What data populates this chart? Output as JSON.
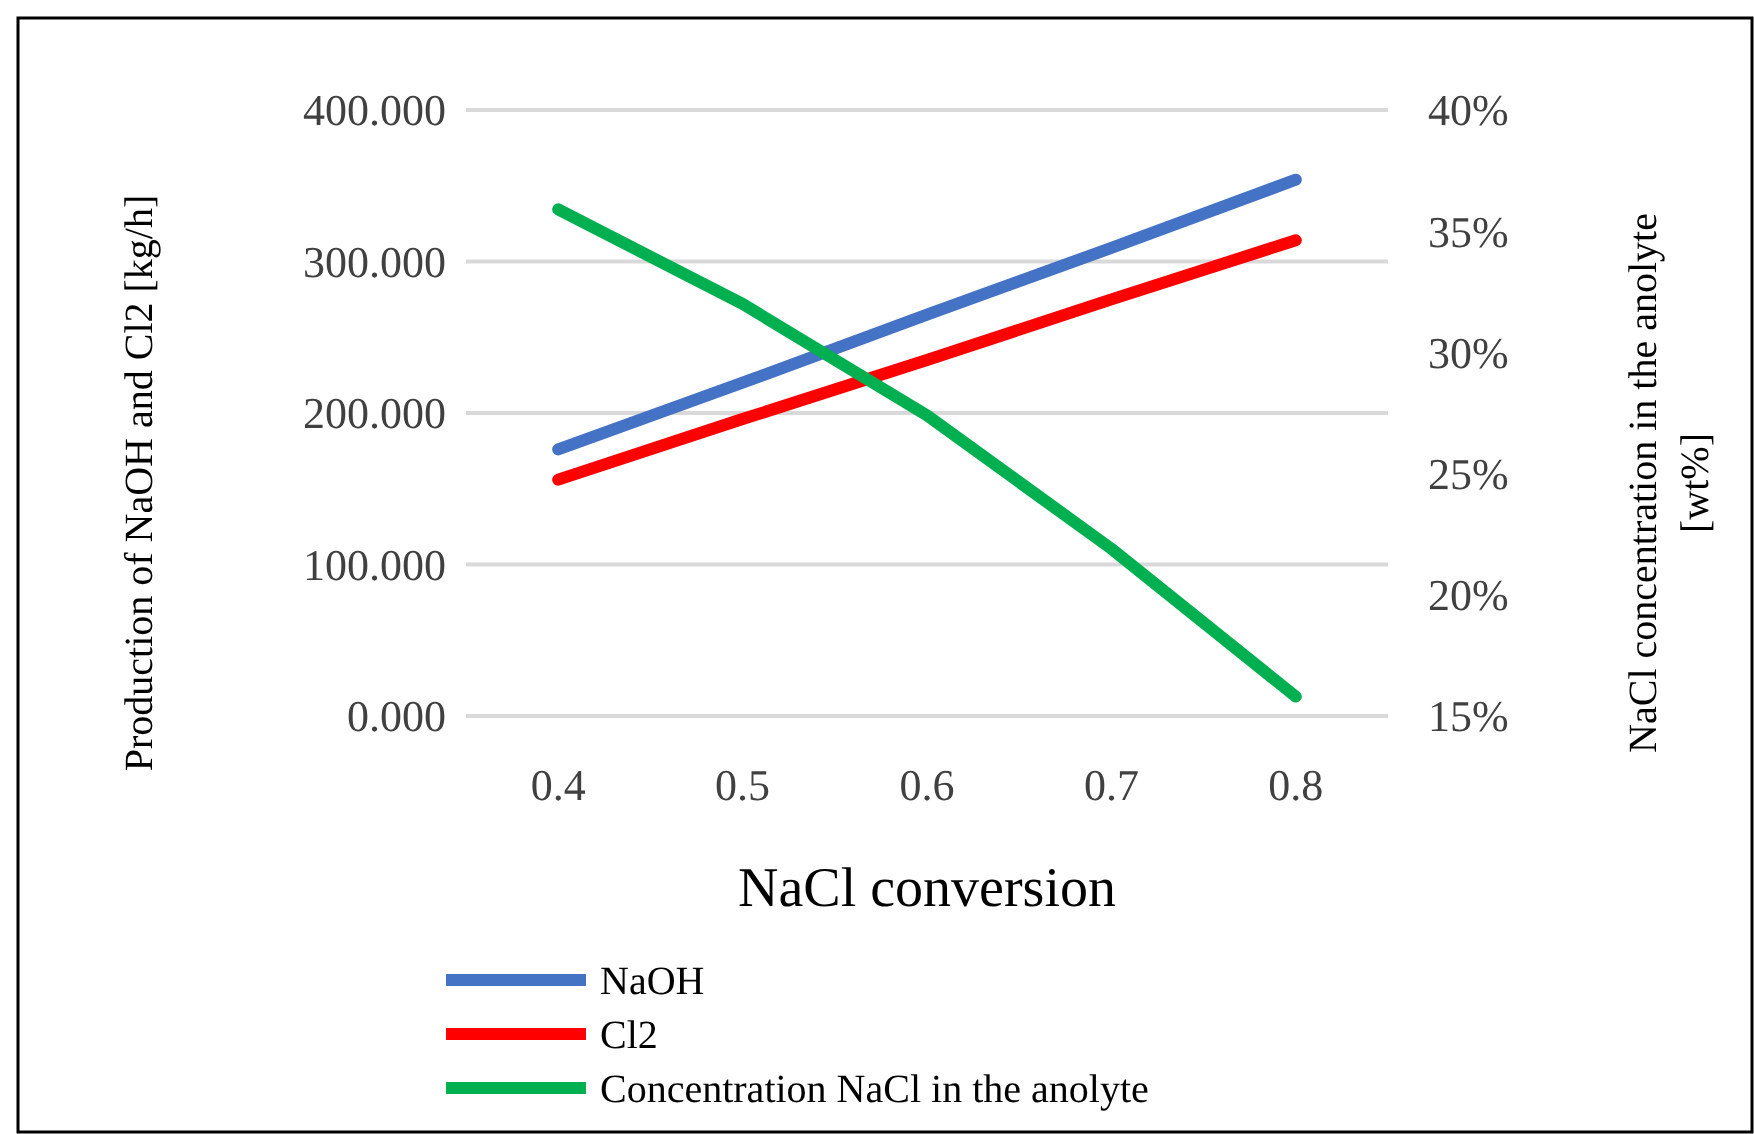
{
  "chart_data": {
    "type": "line",
    "xlabel": "NaCl conversion",
    "ylabel": "Production of NaOH and Cl2 [kg/h]",
    "y2label": "NaCl concentration in the anolyte [wt%]",
    "categories": [
      "0.4",
      "0.5",
      "0.6",
      "0.7",
      "0.8"
    ],
    "series": [
      {
        "name": "NaOH",
        "color": "#4472c4",
        "values": [
          176,
          220,
          265,
          309,
          354
        ]
      },
      {
        "name": "Cl2",
        "color": "#ff0000",
        "values": [
          156,
          196,
          235,
          275,
          314
        ]
      },
      {
        "name": "Concentration NaCl in the anolyte",
        "color": "#00b050",
        "axis": "y2",
        "values": [
          35.9,
          32.0,
          27.4,
          21.9,
          15.8
        ]
      }
    ],
    "ylim": [
      0,
      400
    ],
    "yticks": [
      {
        "value": 0,
        "label": "0.000"
      },
      {
        "value": 100,
        "label": "100.000"
      },
      {
        "value": 200,
        "label": "200.000"
      },
      {
        "value": 300,
        "label": "300.000"
      },
      {
        "value": 400,
        "label": "400.000"
      }
    ],
    "y2lim": [
      15,
      40
    ],
    "y2ticks": [
      {
        "value": 15,
        "label": "15%"
      },
      {
        "value": 20,
        "label": "20%"
      },
      {
        "value": 25,
        "label": "25%"
      },
      {
        "value": 30,
        "label": "30%"
      },
      {
        "value": 35,
        "label": "35%"
      },
      {
        "value": 40,
        "label": "40%"
      }
    ],
    "grid": "y",
    "legend": "bottom",
    "marker": "none",
    "line_style": "solid"
  }
}
